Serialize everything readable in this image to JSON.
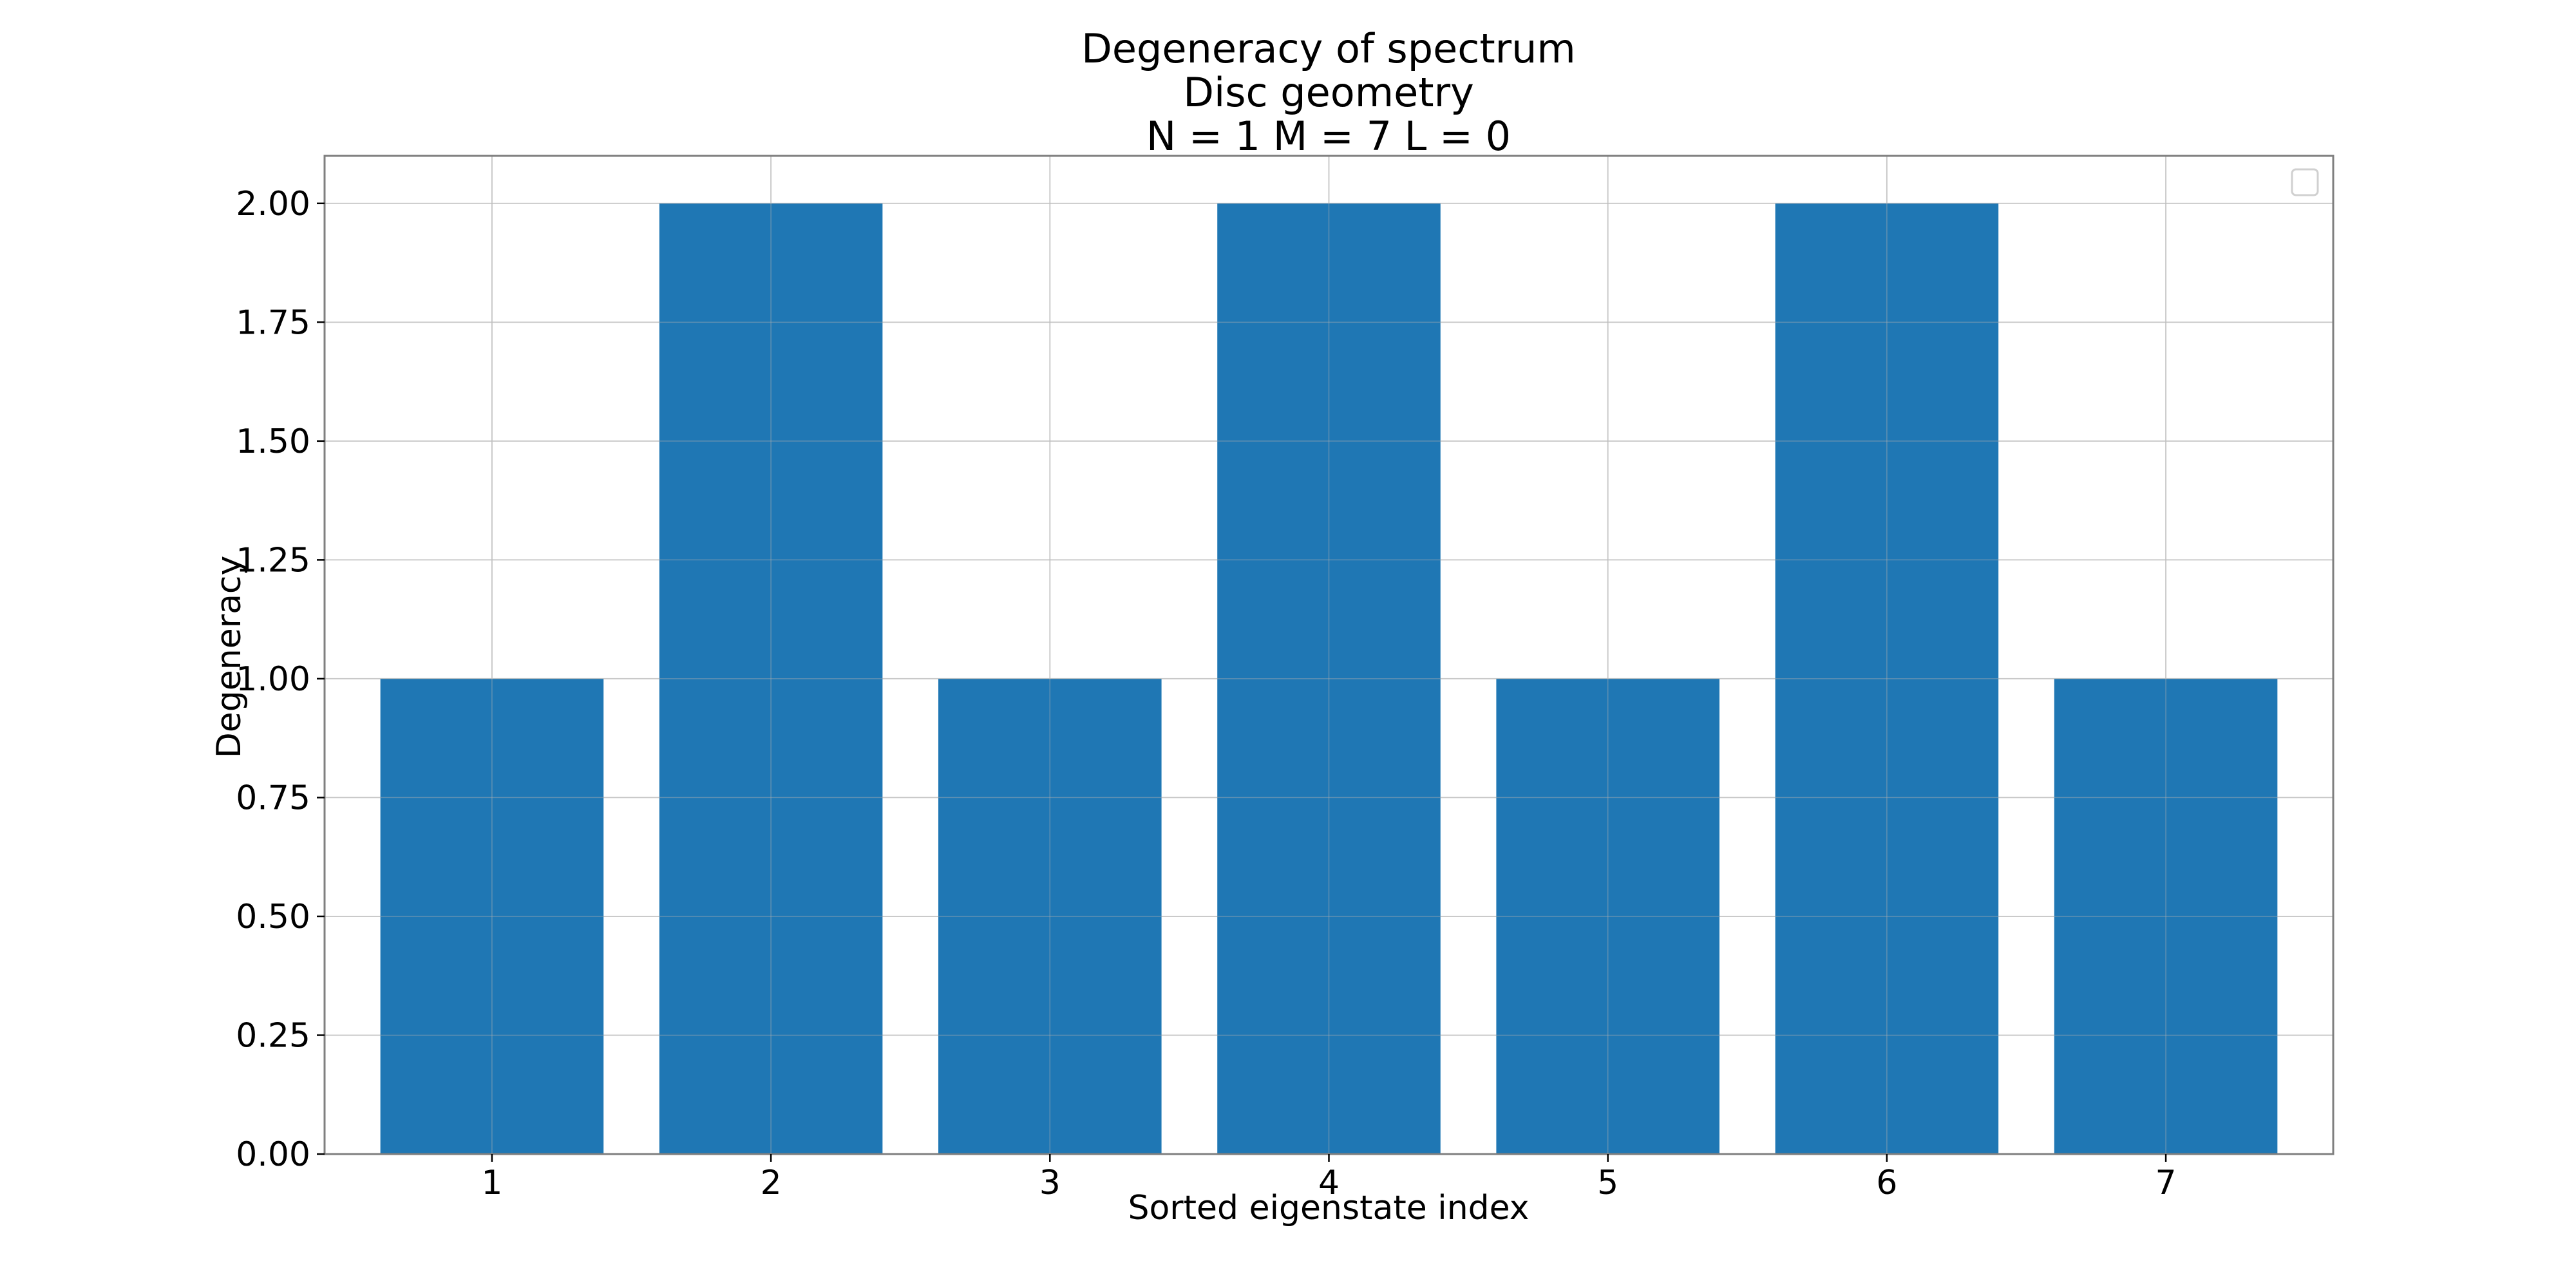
{
  "chart_data": {
    "type": "bar",
    "title_lines": [
      "Degeneracy of spectrum",
      "Disc geometry",
      "N = 1   M = 7   L = 0"
    ],
    "xlabel": "Sorted eigenstate index",
    "ylabel": "Degeneracy",
    "categories": [
      "1",
      "2",
      "3",
      "4",
      "5",
      "6",
      "7"
    ],
    "values": [
      1,
      2,
      1,
      2,
      1,
      2,
      1
    ],
    "ylim": [
      0,
      2.1
    ],
    "yticks": [
      "0.00",
      "0.25",
      "0.50",
      "0.75",
      "1.00",
      "1.25",
      "1.50",
      "1.75",
      "2.00"
    ],
    "bar_color": "#1f77b4",
    "grid": true,
    "legend": "top-right"
  }
}
